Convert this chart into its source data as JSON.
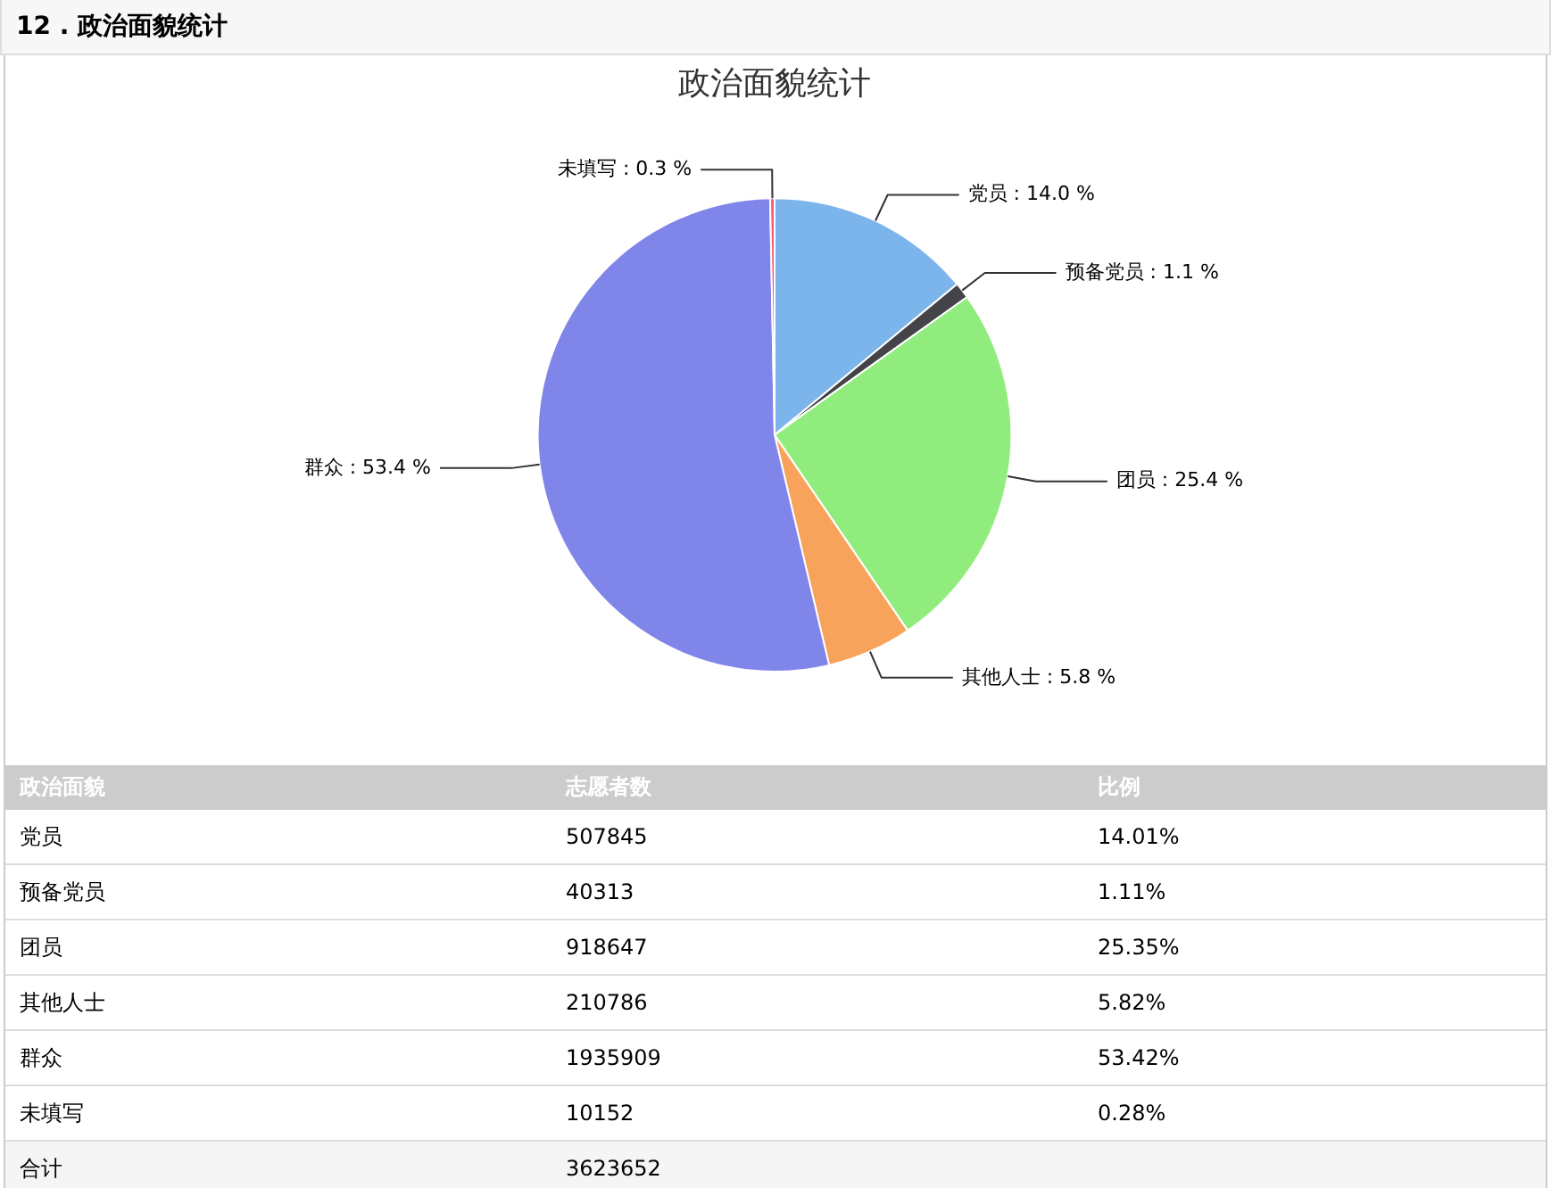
{
  "chart_data": [
    {
      "type": "pie",
      "title": "12 . 政治面貌统计",
      "subtitle": "政治面貌统计",
      "categories": [
        "党员",
        "预备党员",
        "团员",
        "其他人士",
        "群众",
        "未填写"
      ],
      "values": [
        14.0,
        1.1,
        25.4,
        5.8,
        53.4,
        0.3
      ],
      "colors": [
        "#7cb5ec",
        "#434348",
        "#90ed7d",
        "#f7a35c",
        "#8085e9",
        "#f15c80"
      ],
      "value_labels": [
        "14.0 %",
        "1.1 %",
        "25.4 %",
        "5.8 %",
        "53.4 %",
        "0.3 %"
      ]
    },
    {
      "type": "other",
      "xlabel": "政治面貌",
      "categories": [
        "党员",
        "预备党员",
        "团员",
        "其他人士",
        "群众",
        "未填写"
      ],
      "series": [
        {
          "name": "志愿者数",
          "values": [
            507845,
            40313,
            918647,
            210786,
            1935909,
            10152
          ]
        }
      ],
      "data_labels": true,
      "annotations": [
        "比例",
        "14.01%",
        "1.11%",
        "25.35%",
        "5.82%",
        "53.42%",
        "0.28%",
        "合计",
        "3623652"
      ]
    }
  ]
}
